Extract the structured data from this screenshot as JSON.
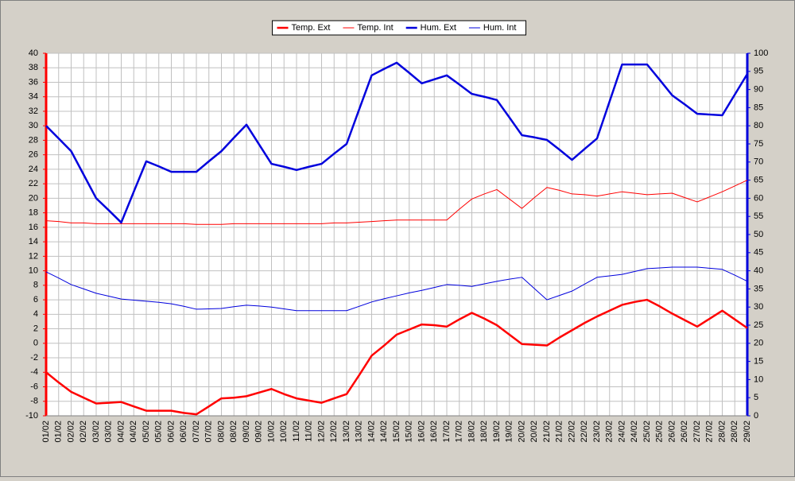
{
  "chart_data": {
    "type": "line",
    "categories": [
      "01/02",
      "01/02",
      "02/02",
      "02/02",
      "03/02",
      "03/02",
      "04/02",
      "04/02",
      "05/02",
      "05/02",
      "06/02",
      "06/02",
      "07/02",
      "07/02",
      "08/02",
      "08/02",
      "09/02",
      "09/02",
      "10/02",
      "10/02",
      "11/02",
      "11/02",
      "12/02",
      "12/02",
      "13/02",
      "13/02",
      "14/02",
      "14/02",
      "15/02",
      "15/02",
      "16/02",
      "16/02",
      "17/02",
      "17/02",
      "18/02",
      "18/02",
      "19/02",
      "19/02",
      "20/02",
      "20/02",
      "21/02",
      "21/02",
      "22/02",
      "22/02",
      "23/02",
      "23/02",
      "24/02",
      "24/02",
      "25/02",
      "25/02",
      "26/02",
      "26/02",
      "27/02",
      "27/02",
      "28/02",
      "28/02",
      "29/02"
    ],
    "series": [
      {
        "name": "Temp. Ext",
        "color": "#ff0000",
        "linewidth": 2.5,
        "axis": "y",
        "values": [
          -4.0,
          -5.4,
          -6.7,
          -7.5,
          -8.3,
          -8.2,
          -8.1,
          -8.7,
          -9.3,
          -9.3,
          -9.3,
          -9.6,
          -9.8,
          -8.7,
          -7.6,
          -7.5,
          -7.3,
          -6.8,
          -6.3,
          -7.0,
          -7.6,
          -7.9,
          -8.2,
          -7.6,
          -7.0,
          -4.4,
          -1.7,
          -0.3,
          1.2,
          1.9,
          2.6,
          2.5,
          2.3,
          3.3,
          4.2,
          3.4,
          2.5,
          1.2,
          -0.1,
          -0.2,
          -0.3,
          0.8,
          1.8,
          2.8,
          3.7,
          4.5,
          5.3,
          5.7,
          6.0,
          5.1,
          4.1,
          3.2,
          2.3,
          3.4,
          4.5,
          3.3,
          2.1
        ]
      },
      {
        "name": "Temp. Int",
        "color": "#ff0000",
        "linewidth": 1,
        "axis": "y",
        "values": [
          16.9,
          16.8,
          16.6,
          16.6,
          16.5,
          16.5,
          16.5,
          16.5,
          16.5,
          16.5,
          16.5,
          16.5,
          16.4,
          16.4,
          16.4,
          16.5,
          16.5,
          16.5,
          16.5,
          16.5,
          16.5,
          16.5,
          16.5,
          16.6,
          16.6,
          16.7,
          16.8,
          16.9,
          17.0,
          17.0,
          17.0,
          17.0,
          17.0,
          18.5,
          19.9,
          20.6,
          21.2,
          19.9,
          18.6,
          20.1,
          21.5,
          21.1,
          20.6,
          20.5,
          20.3,
          20.6,
          20.9,
          20.7,
          20.5,
          20.6,
          20.7,
          20.1,
          19.5,
          20.2,
          20.9,
          21.7,
          22.5
        ]
      },
      {
        "name": "Hum. Ext",
        "color": "#0000dd",
        "linewidth": 2.5,
        "axis": "y2",
        "values": [
          80,
          76.5,
          73,
          66.5,
          60,
          56.7,
          53.3,
          61.8,
          70.2,
          68.8,
          67.3,
          67.3,
          67.3,
          70.2,
          73,
          76.7,
          80.3,
          74.9,
          69.5,
          68.7,
          67.8,
          68.7,
          69.5,
          72.3,
          75,
          84.5,
          93.9,
          95.7,
          97.4,
          94.6,
          91.7,
          92.8,
          93.9,
          91.4,
          88.8,
          88,
          87.1,
          82.3,
          77.4,
          76.8,
          76.1,
          73.4,
          70.6,
          73.6,
          76.5,
          86.7,
          96.9,
          96.9,
          96.9,
          92.7,
          88.4,
          85.9,
          83.3,
          83.1,
          82.9,
          88.6,
          94.3
        ]
      },
      {
        "name": "Hum. Int",
        "color": "#0000dd",
        "linewidth": 1,
        "axis": "y2",
        "values": [
          39.7,
          38,
          36.2,
          35,
          33.8,
          33,
          32.2,
          31.9,
          31.6,
          31.3,
          30.9,
          30.2,
          29.4,
          29.5,
          29.6,
          30.1,
          30.5,
          30.3,
          30,
          29.5,
          29,
          29,
          29,
          29,
          29,
          30.2,
          31.4,
          32.3,
          33.1,
          33.9,
          34.6,
          35.4,
          36.2,
          36,
          35.7,
          36.4,
          37.1,
          37.7,
          38.2,
          35.1,
          32,
          33.2,
          34.4,
          36.3,
          38.2,
          38.6,
          39,
          39.8,
          40.6,
          40.8,
          41,
          41,
          41,
          40.7,
          40.4,
          38.8,
          37.1
        ]
      }
    ],
    "ylim": [
      -10,
      40
    ],
    "yticks": [
      -10,
      -8,
      -6,
      -4,
      -2,
      0,
      2,
      4,
      6,
      8,
      10,
      12,
      14,
      16,
      18,
      20,
      22,
      24,
      26,
      28,
      30,
      32,
      34,
      36,
      38,
      40
    ],
    "y2lim": [
      0,
      100
    ],
    "y2ticks": [
      0,
      5,
      10,
      15,
      20,
      25,
      30,
      35,
      40,
      45,
      50,
      55,
      60,
      65,
      70,
      75,
      80,
      85,
      90,
      95,
      100
    ],
    "y_axis_color": "#ff0000",
    "y2_axis_color": "#0000dd",
    "grid": true,
    "legend": "top"
  }
}
